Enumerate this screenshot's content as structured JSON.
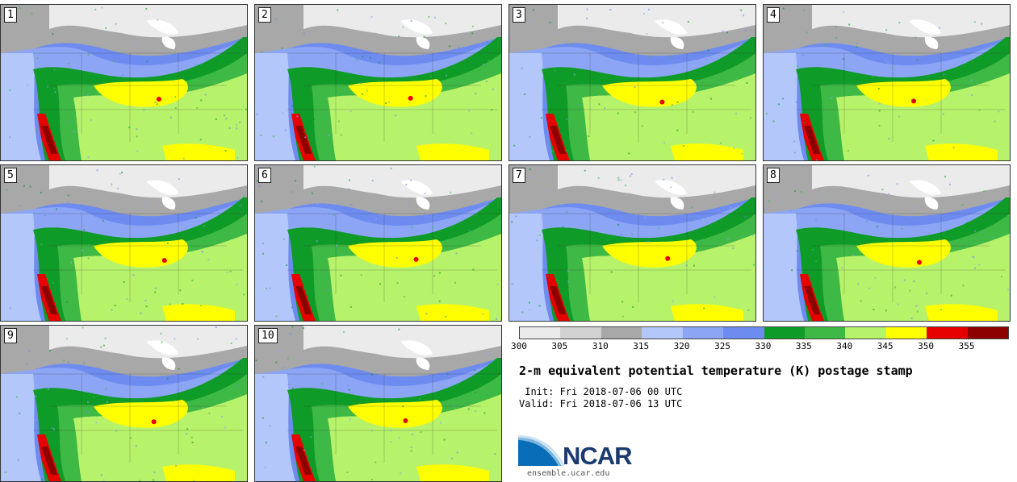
{
  "panels": [
    {
      "label": "1"
    },
    {
      "label": "2"
    },
    {
      "label": "3"
    },
    {
      "label": "4"
    },
    {
      "label": "5"
    },
    {
      "label": "6"
    },
    {
      "label": "7"
    },
    {
      "label": "8"
    },
    {
      "label": "9"
    },
    {
      "label": "10"
    }
  ],
  "colorbar": {
    "colors": [
      "#ebebeb",
      "#d2d2d2",
      "#a8a8a8",
      "#b4c7fa",
      "#8ca5f5",
      "#6e8cf0",
      "#0f9b28",
      "#3fb945",
      "#b7f26b",
      "#ffff00",
      "#e60000",
      "#8c0000"
    ],
    "ticks": [
      "300",
      "305",
      "310",
      "315",
      "320",
      "325",
      "330",
      "335",
      "340",
      "345",
      "350",
      "355"
    ]
  },
  "title": "2-m equivalent potential temperature (K) postage stamp",
  "init": " Init: Fri 2018-07-06 00 UTC",
  "valid": "Valid: Fri 2018-07-06 13 UTC",
  "logo": {
    "text": "NCAR",
    "site": "ensemble.ucar.edu"
  }
}
